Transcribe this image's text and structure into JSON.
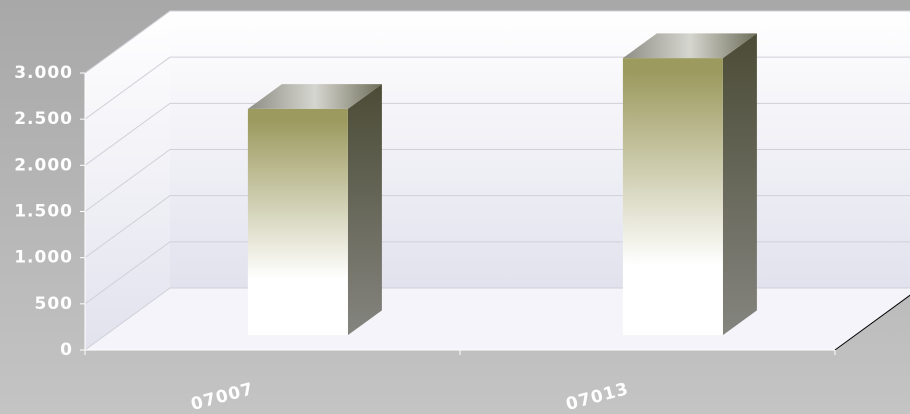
{
  "chart_data": {
    "type": "bar3d",
    "categories": [
      "07007",
      "07013"
    ],
    "values": [
      2450,
      3000
    ],
    "color": "#9c9a5e",
    "ylim": [
      0,
      3000
    ],
    "yticks": [
      0,
      500,
      {
        "value": 1000,
        "label": "1.000"
      },
      {
        "value": 1500,
        "label": "1.500"
      },
      {
        "value": 2000,
        "label": "2.000"
      },
      {
        "value": 2500,
        "label": "2.500"
      },
      {
        "value": 3000,
        "label": "3.000"
      }
    ],
    "grid": true
  }
}
